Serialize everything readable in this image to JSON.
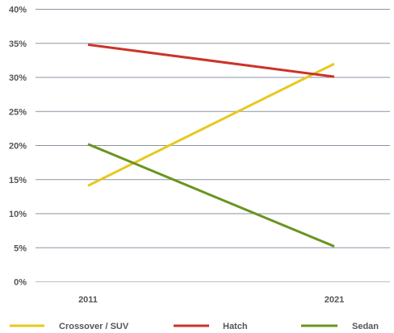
{
  "chart_data": {
    "type": "line",
    "title": "",
    "xlabel": "",
    "ylabel": "",
    "x": [
      "2011",
      "2021"
    ],
    "ylim": [
      0,
      40
    ],
    "y_tick_values": [
      0,
      5,
      10,
      15,
      20,
      25,
      30,
      35,
      40
    ],
    "y_tick_labels": [
      "0%",
      "5%",
      "10%",
      "15%",
      "20%",
      "25%",
      "30%",
      "35%",
      "40%"
    ],
    "grid": true,
    "legend_position": "bottom",
    "series": [
      {
        "name": "Crossover / SUV",
        "values": [
          14.1,
          32.0
        ],
        "color": "#e8c820"
      },
      {
        "name": "Hatch",
        "values": [
          34.8,
          30.1
        ],
        "color": "#cc3328"
      },
      {
        "name": "Sedan",
        "values": [
          20.2,
          5.2
        ],
        "color": "#6a9420"
      }
    ]
  }
}
